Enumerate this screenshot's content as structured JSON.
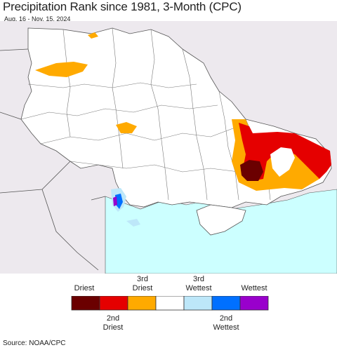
{
  "header": {
    "title": "Precipitation Rank since 1981, 3-Month (CPC)",
    "subtitle": "Aug. 16 - Nov. 15, 2024"
  },
  "legend": {
    "categories": [
      {
        "label": "Driest",
        "color": "#6b0000"
      },
      {
        "label": "2nd Driest",
        "color": "#e50000"
      },
      {
        "label": "3rd Driest",
        "color": "#ffaa00"
      },
      {
        "label": "",
        "color": "#ffffff"
      },
      {
        "label": "3rd Wettest",
        "color": "#bde7f9"
      },
      {
        "label": "2nd Wettest",
        "color": "#0070ff"
      },
      {
        "label": "Wettest",
        "color": "#9900cc"
      }
    ],
    "top_labels": [
      "Driest",
      "3rd\nDriest",
      "3rd\nWettest",
      "Wettest"
    ],
    "bottom_labels": [
      "2nd\nDriest",
      "2nd\nWettest"
    ]
  },
  "colors": {
    "sea": "#ccffff",
    "outside": "#ede9ee",
    "land": "#ffffff",
    "border": "#555555"
  },
  "footer": {
    "source": "Source: NOAA/CPC"
  }
}
